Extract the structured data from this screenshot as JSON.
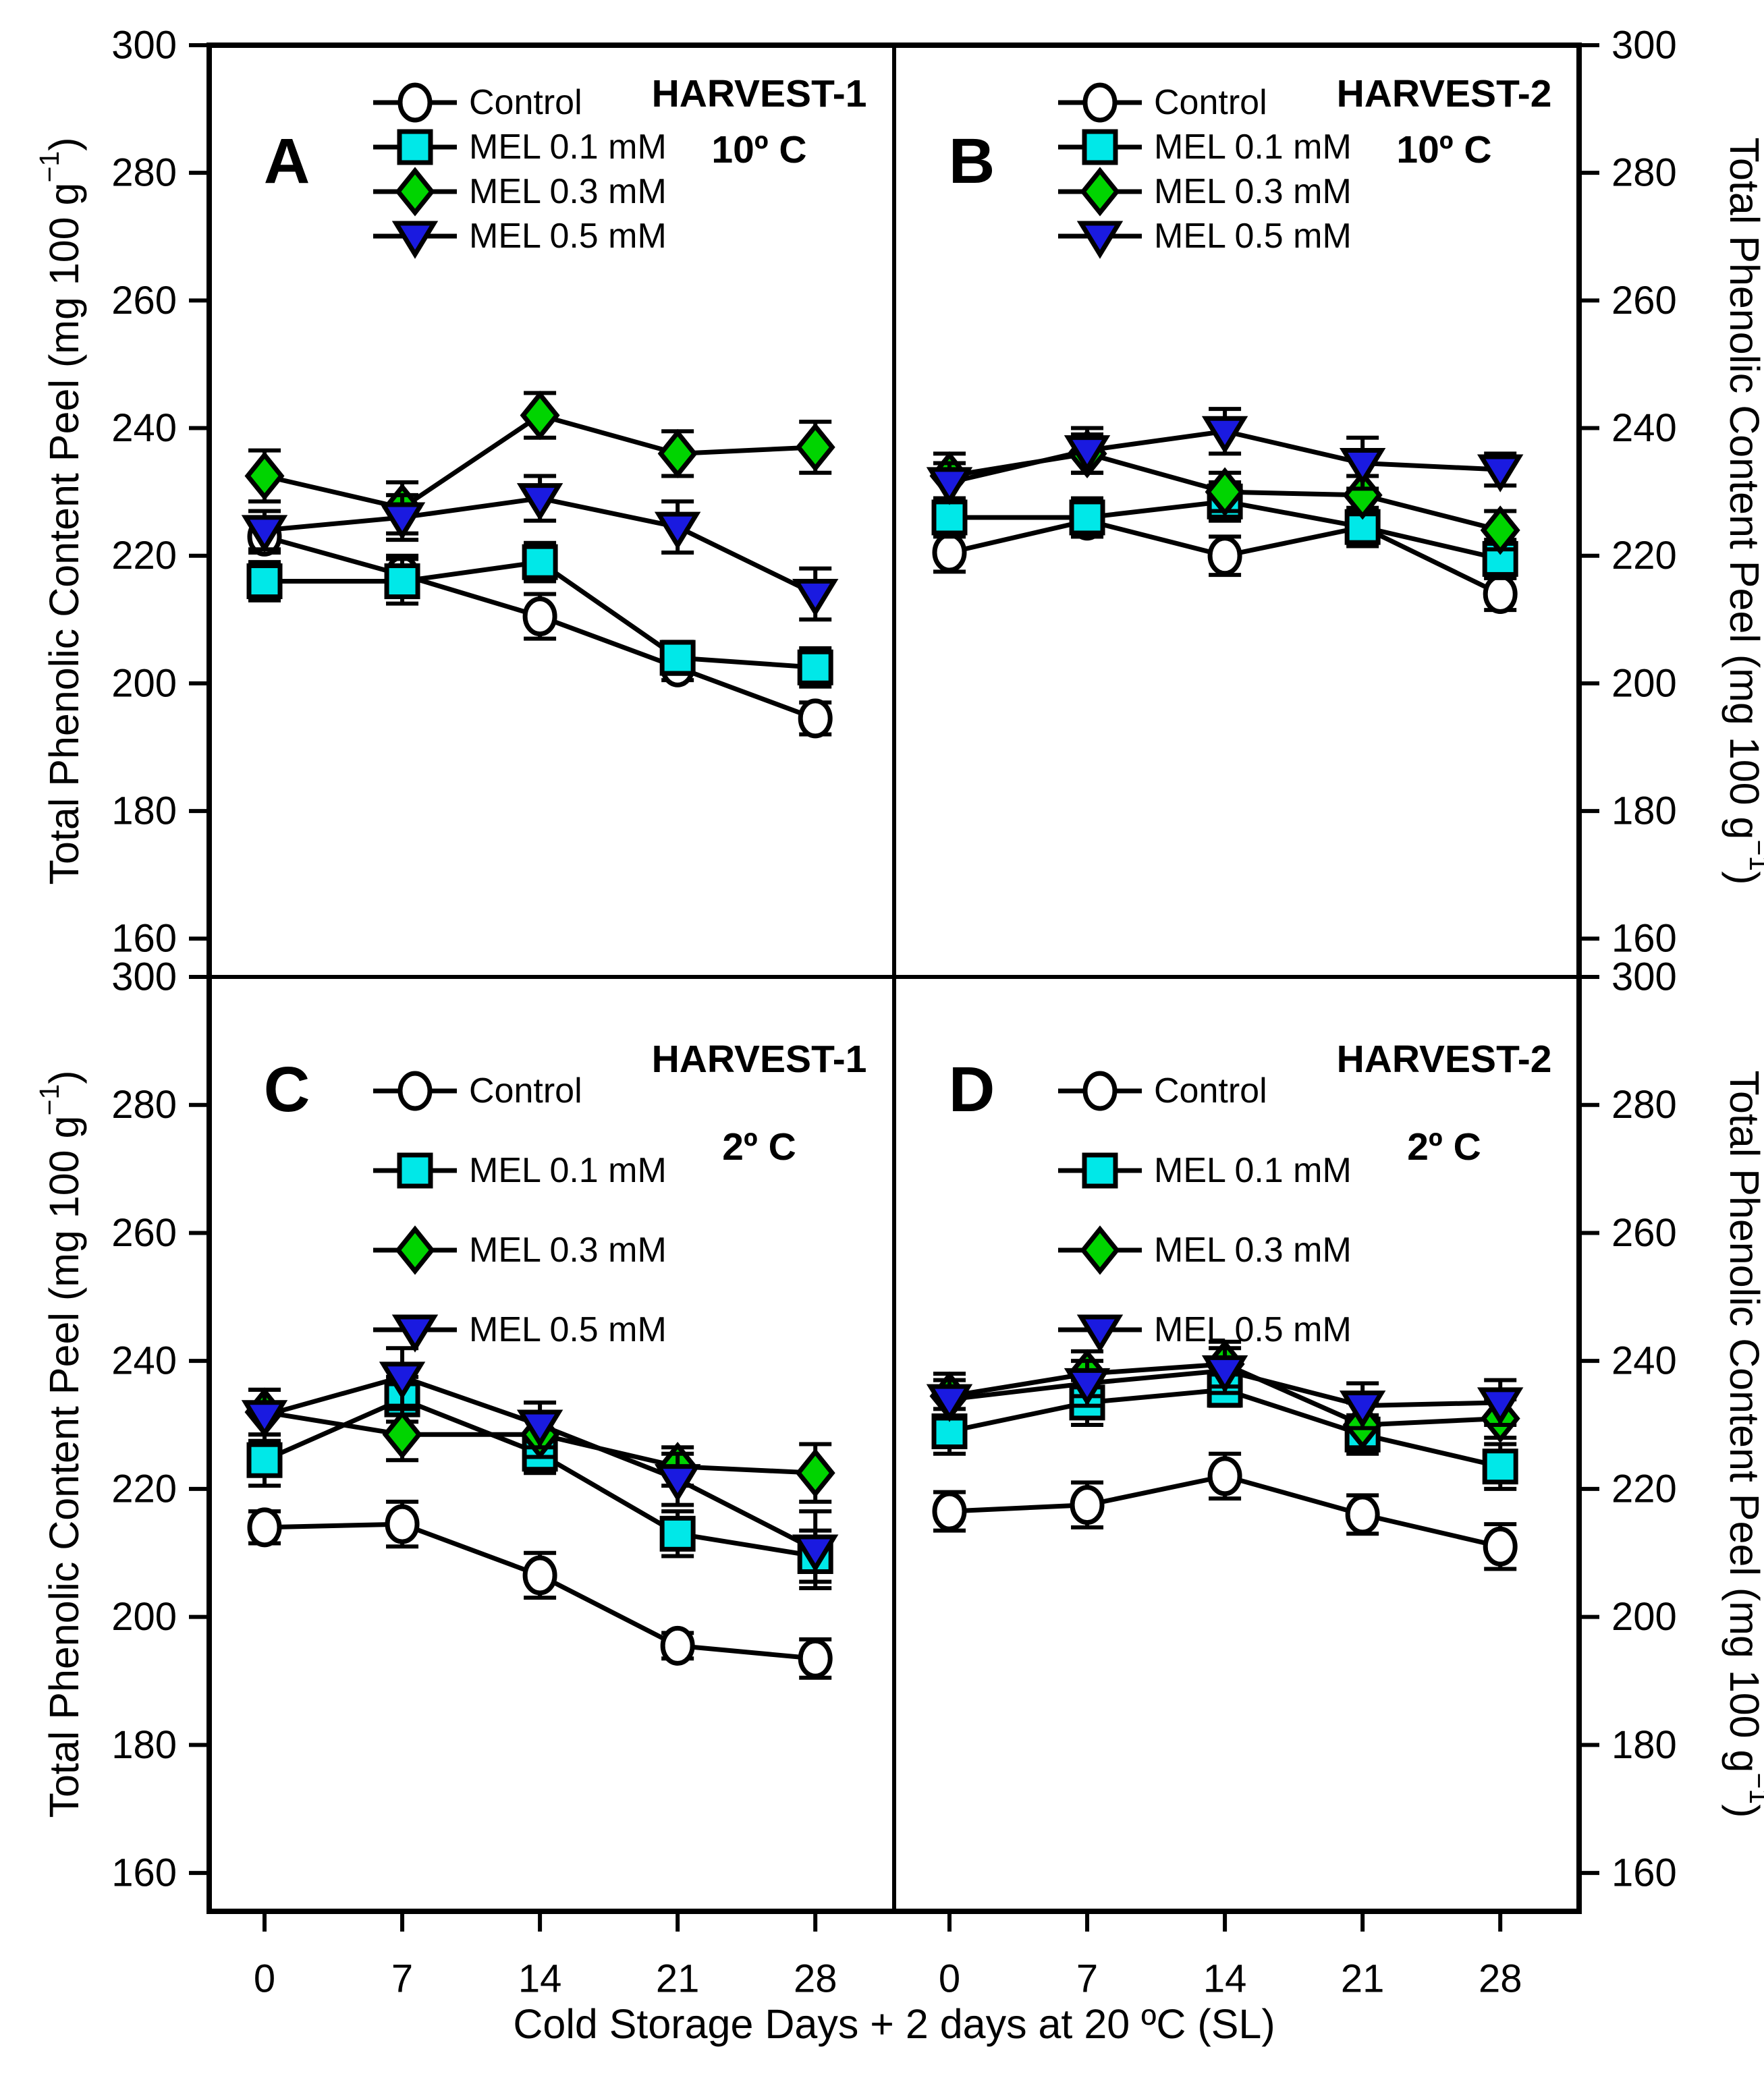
{
  "figure": {
    "xlabel": "Cold Storage Days + 2 days at 20 ºC (SL)",
    "ylabel_base": "Total Phenolic Content Peel (mg 100 g",
    "ylabel_sup": "−1",
    "ylabel_end": ")",
    "annotation_color": "#128012",
    "axis_color": "#000000",
    "background_color": "#ffffff"
  },
  "chart_data": [
    {
      "type": "line",
      "panel_label": "A",
      "annotation_line1": "HARVEST-1",
      "annotation_line2": "10º C",
      "x": [
        0,
        7,
        14,
        21,
        28
      ],
      "xticks": [
        "0",
        "7",
        "14",
        "21",
        "28"
      ],
      "yticks": [
        "160",
        "180",
        "200",
        "220",
        "240",
        "260",
        "280",
        "300"
      ],
      "ylim": [
        154,
        300
      ],
      "legend_position": "top-left-inside",
      "series": [
        {
          "name": "Control",
          "marker": "circle",
          "fill": "#ffffff",
          "values": [
            223.0,
            217.0,
            210.5,
            202.5,
            194.5
          ],
          "errors": [
            2.5,
            3.0,
            3.5,
            2.0,
            2.5
          ]
        },
        {
          "name": "MEL 0.1 mM",
          "marker": "square",
          "fill": "#00e8e8",
          "values": [
            216.0,
            216.0,
            219.0,
            204.0,
            202.5
          ],
          "errors": [
            3.0,
            3.5,
            3.0,
            2.5,
            3.0
          ]
        },
        {
          "name": "MEL 0.3 mM",
          "marker": "diamond",
          "fill": "#00d400",
          "values": [
            232.5,
            227.5,
            242.0,
            236.0,
            237.0
          ],
          "errors": [
            4.0,
            4.0,
            3.5,
            3.5,
            4.0
          ]
        },
        {
          "name": "MEL 0.5 mM",
          "marker": "triangle-down",
          "fill": "#1a1ae0",
          "values": [
            224.0,
            226.0,
            229.0,
            224.5,
            214.0
          ],
          "errors": [
            3.0,
            3.5,
            3.5,
            4.0,
            4.0
          ]
        }
      ]
    },
    {
      "type": "line",
      "panel_label": "B",
      "annotation_line1": "HARVEST-2",
      "annotation_line2": "10º C",
      "x": [
        0,
        7,
        14,
        21,
        28
      ],
      "xticks": [
        "0",
        "7",
        "14",
        "21",
        "28"
      ],
      "yticks": [
        "160",
        "180",
        "200",
        "220",
        "240",
        "260",
        "280",
        "300"
      ],
      "ylim": [
        154,
        300
      ],
      "legend_position": "top-left-inside",
      "series": [
        {
          "name": "Control",
          "marker": "circle",
          "fill": "#ffffff",
          "values": [
            220.5,
            225.5,
            220.0,
            224.5,
            214.0
          ],
          "errors": [
            3.0,
            2.5,
            3.0,
            2.5,
            2.5
          ]
        },
        {
          "name": "MEL 0.1 mM",
          "marker": "square",
          "fill": "#00e8e8",
          "values": [
            226.0,
            226.0,
            228.5,
            224.5,
            219.5
          ],
          "errors": [
            3.0,
            3.0,
            3.0,
            3.0,
            3.0
          ]
        },
        {
          "name": "MEL 0.3 mM",
          "marker": "diamond",
          "fill": "#00d400",
          "values": [
            232.5,
            236.0,
            230.0,
            229.5,
            224.0
          ],
          "errors": [
            3.5,
            3.0,
            3.0,
            3.0,
            3.0
          ]
        },
        {
          "name": "MEL 0.5 mM",
          "marker": "triangle-down",
          "fill": "#1a1ae0",
          "values": [
            231.5,
            236.5,
            239.5,
            234.5,
            233.5
          ],
          "errors": [
            3.0,
            3.5,
            3.5,
            4.0,
            2.5
          ]
        }
      ]
    },
    {
      "type": "line",
      "panel_label": "C",
      "annotation_line1": "HARVEST-1",
      "annotation_line2": "2º C",
      "x": [
        0,
        7,
        14,
        21,
        28
      ],
      "xticks": [
        "0",
        "7",
        "14",
        "21",
        "28"
      ],
      "yticks": [
        "160",
        "180",
        "200",
        "220",
        "240",
        "260",
        "280",
        "300"
      ],
      "ylim": [
        154,
        300
      ],
      "legend_position": "top-left-inside",
      "series": [
        {
          "name": "Control",
          "marker": "circle",
          "fill": "#ffffff",
          "values": [
            214.0,
            214.5,
            206.5,
            195.5,
            193.5
          ],
          "errors": [
            2.5,
            3.5,
            3.5,
            2.0,
            3.0
          ]
        },
        {
          "name": "MEL 0.1 mM",
          "marker": "square",
          "fill": "#00e8e8",
          "values": [
            224.5,
            234.0,
            225.5,
            213.0,
            209.5
          ],
          "errors": [
            4.0,
            3.5,
            3.0,
            3.5,
            4.0
          ]
        },
        {
          "name": "MEL 0.3 mM",
          "marker": "diamond",
          "fill": "#00d400",
          "values": [
            232.0,
            228.5,
            228.5,
            223.5,
            222.5
          ],
          "errors": [
            3.5,
            4.0,
            3.5,
            3.0,
            4.5
          ]
        },
        {
          "name": "MEL 0.5 mM",
          "marker": "triangle-down",
          "fill": "#1a1ae0",
          "values": [
            231.5,
            237.5,
            230.0,
            221.5,
            210.5
          ],
          "errors": [
            4.0,
            4.5,
            3.5,
            4.0,
            6.0
          ]
        }
      ]
    },
    {
      "type": "line",
      "panel_label": "D",
      "annotation_line1": "HARVEST-2",
      "annotation_line2": "2º C",
      "x": [
        0,
        7,
        14,
        21,
        28
      ],
      "xticks": [
        "0",
        "7",
        "14",
        "21",
        "28"
      ],
      "yticks": [
        "160",
        "180",
        "200",
        "220",
        "240",
        "260",
        "280",
        "300"
      ],
      "ylim": [
        154,
        300
      ],
      "legend_position": "top-left-inside",
      "series": [
        {
          "name": "Control",
          "marker": "circle",
          "fill": "#ffffff",
          "values": [
            216.5,
            217.5,
            222.0,
            216.0,
            211.0
          ],
          "errors": [
            3.0,
            3.5,
            3.5,
            3.0,
            3.5
          ]
        },
        {
          "name": "MEL 0.1 mM",
          "marker": "square",
          "fill": "#00e8e8",
          "values": [
            229.0,
            233.5,
            235.5,
            228.5,
            223.5
          ],
          "errors": [
            3.5,
            3.5,
            2.5,
            3.0,
            3.5
          ]
        },
        {
          "name": "MEL 0.3 mM",
          "marker": "diamond",
          "fill": "#00d400",
          "values": [
            234.5,
            238.0,
            239.5,
            230.0,
            231.0
          ],
          "errors": [
            3.5,
            3.5,
            3.5,
            3.5,
            3.0
          ]
        },
        {
          "name": "MEL 0.5 mM",
          "marker": "triangle-down",
          "fill": "#1a1ae0",
          "values": [
            234.0,
            236.5,
            238.5,
            233.0,
            233.5
          ],
          "errors": [
            3.0,
            3.5,
            3.5,
            3.5,
            3.5
          ]
        }
      ]
    }
  ]
}
